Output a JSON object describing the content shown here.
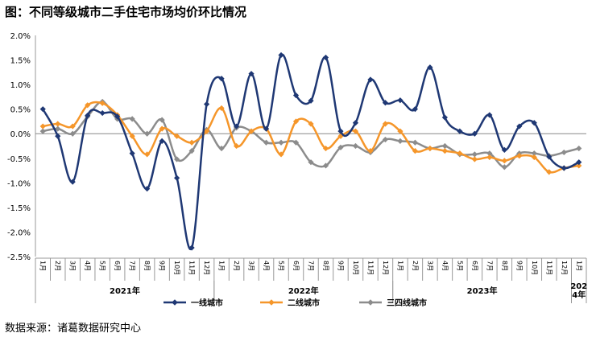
{
  "title": "图：不同等级城市二手住宅市场均价环比情况",
  "source": "数据来源：诸葛数据研究中心",
  "chart_data": {
    "type": "line",
    "ylim": [
      -2.5,
      2.0
    ],
    "yticks": [
      "2.0%",
      "1.5%",
      "1.0%",
      "0.5%",
      "0.0%",
      "-0.5%",
      "-1.0%",
      "-1.5%",
      "-2.0%",
      "-2.5%"
    ],
    "ytick_values": [
      2.0,
      1.5,
      1.0,
      0.5,
      0.0,
      -0.5,
      -1.0,
      -1.5,
      -2.0,
      -2.5
    ],
    "categories": [
      "1月",
      "2月",
      "3月",
      "4月",
      "5月",
      "6月",
      "7月",
      "8月",
      "9月",
      "10月",
      "11月",
      "12月",
      "1月",
      "2月",
      "3月",
      "4月",
      "5月",
      "6月",
      "7月",
      "8月",
      "9月",
      "10月",
      "11月",
      "12月",
      "1月",
      "2月",
      "3月",
      "4月",
      "5月",
      "6月",
      "7月",
      "8月",
      "9月",
      "10月",
      "11月",
      "12月",
      "1月"
    ],
    "year_groups": [
      {
        "label": "2021年",
        "start": 0,
        "end": 11
      },
      {
        "label": "2022年",
        "start": 12,
        "end": 23
      },
      {
        "label": "2023年",
        "start": 24,
        "end": 35
      },
      {
        "label": "2024年",
        "start": 36,
        "end": 36
      }
    ],
    "year_label_lines": {
      "2024年": [
        "202",
        "4年"
      ]
    },
    "series": [
      {
        "name": "一线城市",
        "color": "#1f3874",
        "marker": "diamond",
        "values": [
          0.5,
          -0.05,
          -0.98,
          0.37,
          0.42,
          0.35,
          -0.4,
          -1.12,
          -0.15,
          -0.9,
          -2.32,
          0.6,
          1.12,
          0.15,
          1.22,
          0.1,
          1.6,
          0.78,
          0.67,
          1.55,
          0.05,
          0.22,
          1.1,
          0.63,
          0.68,
          0.5,
          1.35,
          0.33,
          0.05,
          0.0,
          0.38,
          -0.33,
          0.15,
          0.22,
          -0.47,
          -0.7,
          -0.58
        ]
      },
      {
        "name": "二线城市",
        "color": "#f5962a",
        "marker": "diamond",
        "values": [
          0.15,
          0.2,
          0.15,
          0.58,
          0.62,
          0.38,
          -0.05,
          -0.42,
          0.1,
          -0.05,
          -0.18,
          0.05,
          0.52,
          -0.25,
          0.05,
          0.1,
          -0.42,
          0.25,
          0.2,
          -0.3,
          -0.05,
          0.05,
          -0.35,
          0.2,
          0.05,
          -0.35,
          -0.3,
          -0.35,
          -0.4,
          -0.52,
          -0.48,
          -0.55,
          -0.45,
          -0.48,
          -0.78,
          -0.7,
          -0.65
        ]
      },
      {
        "name": "三四线城市",
        "color": "#8c8c8c",
        "marker": "diamond",
        "values": [
          0.05,
          0.1,
          0.0,
          0.35,
          0.65,
          0.3,
          0.3,
          0.0,
          0.28,
          -0.52,
          -0.35,
          0.08,
          -0.3,
          0.12,
          0.05,
          -0.18,
          -0.18,
          -0.18,
          -0.58,
          -0.65,
          -0.28,
          -0.25,
          -0.38,
          -0.12,
          -0.15,
          -0.18,
          -0.3,
          -0.25,
          -0.42,
          -0.42,
          -0.4,
          -0.68,
          -0.4,
          -0.4,
          -0.45,
          -0.38,
          -0.3
        ]
      }
    ],
    "legend_position": "bottom"
  }
}
